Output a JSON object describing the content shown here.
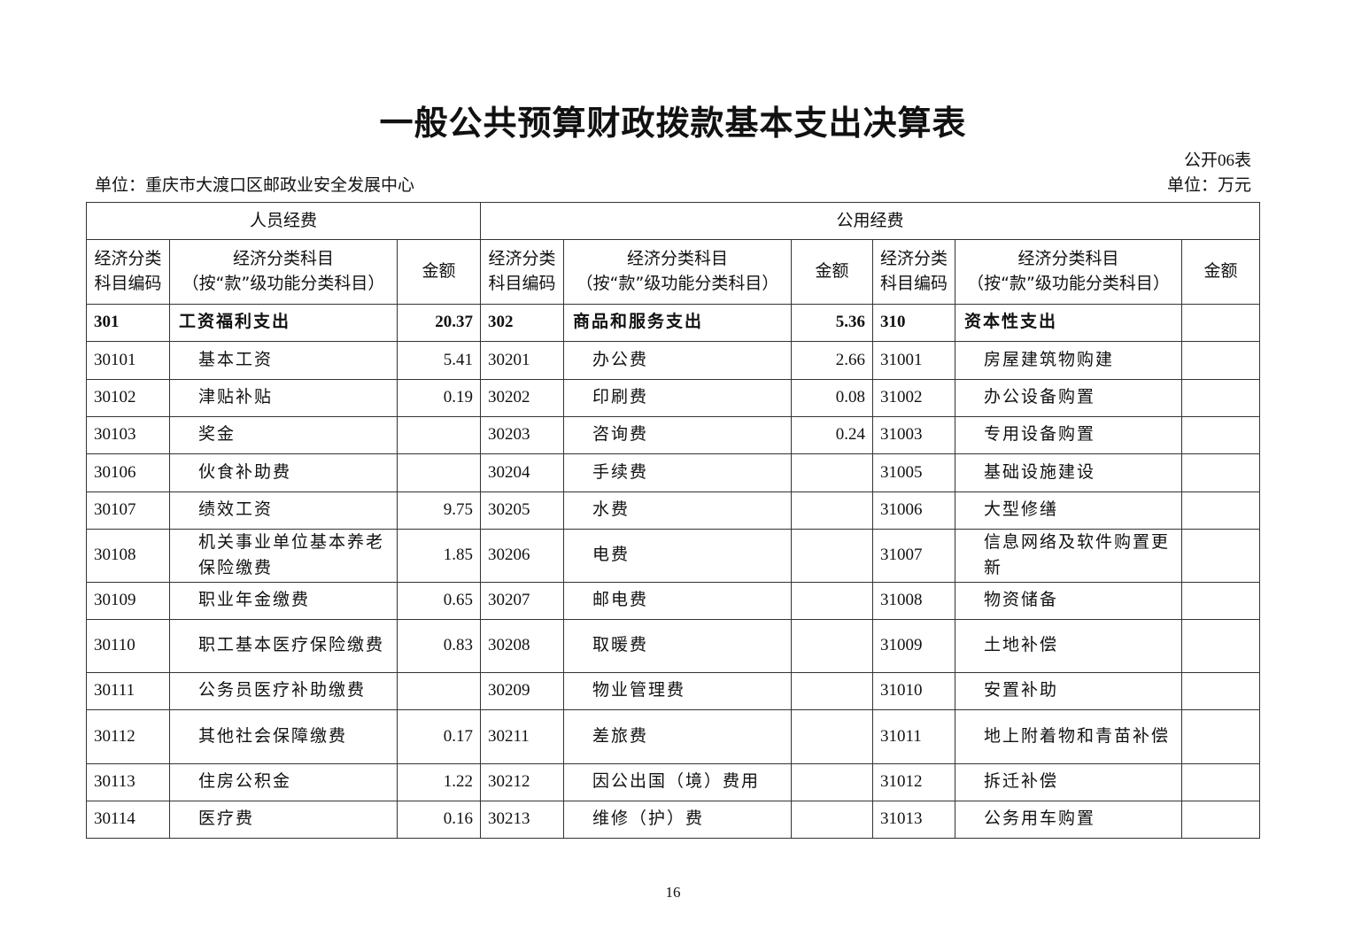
{
  "title": "一般公共预算财政拨款基本支出决算表",
  "form_no": "公开06表",
  "unit_org": "单位：重庆市大渡口区邮政业安全发展中心",
  "unit_money": "单位：万元",
  "sections": [
    "人员经费",
    "公用经费"
  ],
  "headers": {
    "code": "经济分类\n科目编码",
    "name": "经济分类科目\n（按“款”级功能分类科目）",
    "amount": "金额"
  },
  "rows": [
    [
      [
        "301",
        "工资福利支出",
        "20.37"
      ],
      [
        "302",
        "商品和服务支出",
        "5.36"
      ],
      [
        "310",
        "资本性支出",
        ""
      ]
    ],
    [
      [
        "30101",
        "基本工资",
        "5.41"
      ],
      [
        "30201",
        "办公费",
        "2.66"
      ],
      [
        "31001",
        "房屋建筑物购建",
        ""
      ]
    ],
    [
      [
        "30102",
        "津贴补贴",
        "0.19"
      ],
      [
        "30202",
        "印刷费",
        "0.08"
      ],
      [
        "31002",
        "办公设备购置",
        ""
      ]
    ],
    [
      [
        "30103",
        "奖金",
        ""
      ],
      [
        "30203",
        "咨询费",
        "0.24"
      ],
      [
        "31003",
        "专用设备购置",
        ""
      ]
    ],
    [
      [
        "30106",
        "伙食补助费",
        ""
      ],
      [
        "30204",
        "手续费",
        ""
      ],
      [
        "31005",
        "基础设施建设",
        ""
      ]
    ],
    [
      [
        "30107",
        "绩效工资",
        "9.75"
      ],
      [
        "30205",
        "水费",
        ""
      ],
      [
        "31006",
        "大型修缮",
        ""
      ]
    ],
    [
      [
        "30108",
        "机关事业单位基本养老保险缴费",
        "1.85"
      ],
      [
        "30206",
        "电费",
        ""
      ],
      [
        "31007",
        "信息网络及软件购置更新",
        ""
      ]
    ],
    [
      [
        "30109",
        "职业年金缴费",
        "0.65"
      ],
      [
        "30207",
        "邮电费",
        ""
      ],
      [
        "31008",
        "物资储备",
        ""
      ]
    ],
    [
      [
        "30110",
        "职工基本医疗保险缴费",
        "0.83"
      ],
      [
        "30208",
        "取暖费",
        ""
      ],
      [
        "31009",
        "土地补偿",
        ""
      ]
    ],
    [
      [
        "30111",
        "公务员医疗补助缴费",
        ""
      ],
      [
        "30209",
        "物业管理费",
        ""
      ],
      [
        "31010",
        "安置补助",
        ""
      ]
    ],
    [
      [
        "30112",
        "其他社会保障缴费",
        "0.17"
      ],
      [
        "30211",
        "差旅费",
        ""
      ],
      [
        "31011",
        "地上附着物和青苗补偿",
        ""
      ]
    ],
    [
      [
        "30113",
        "住房公积金",
        "1.22"
      ],
      [
        "30212",
        "因公出国（境）费用",
        ""
      ],
      [
        "31012",
        "拆迁补偿",
        ""
      ]
    ],
    [
      [
        "30114",
        "医疗费",
        "0.16"
      ],
      [
        "30213",
        "维修（护）费",
        ""
      ],
      [
        "31013",
        "公务用车购置",
        ""
      ]
    ]
  ],
  "page_number": "16"
}
